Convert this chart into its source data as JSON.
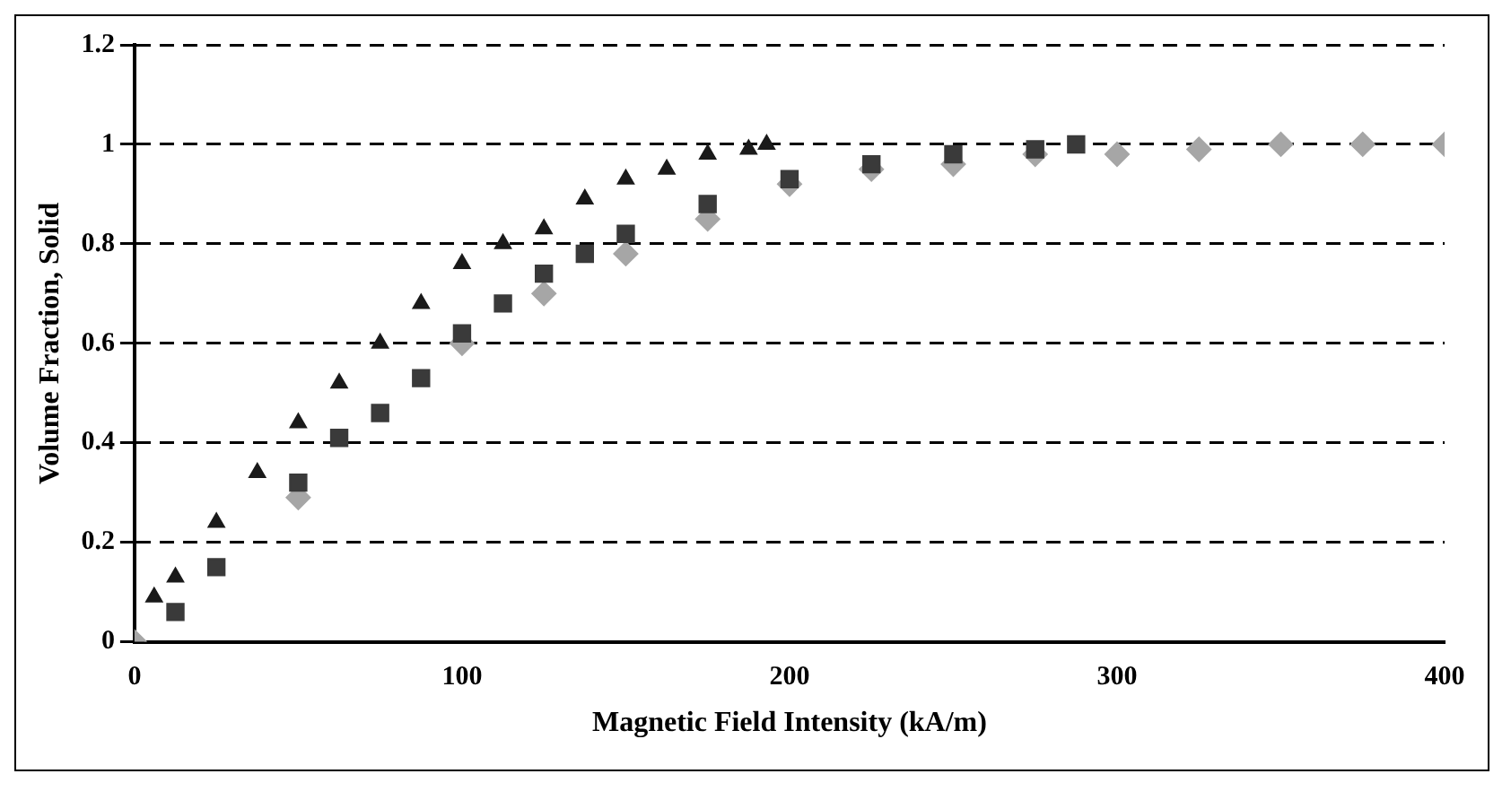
{
  "chart_data": {
    "type": "scatter",
    "xlabel": "Magnetic Field Intensity (kA/m)",
    "ylabel": "Volume Fraction, Solid",
    "xlim": [
      0,
      400
    ],
    "xticks": [
      0,
      100,
      200,
      300,
      400
    ],
    "ylim": [
      0,
      1.2
    ],
    "yticks": [
      0,
      0.2,
      0.4,
      0.6,
      0.8,
      1,
      1.2
    ],
    "grid": "y",
    "legend": false,
    "series": [
      {
        "color": "#a6a6a6",
        "marker": "diamond",
        "x": [
          0,
          50,
          100,
          125,
          150,
          175,
          200,
          225,
          250,
          275,
          300,
          325,
          350,
          375,
          400
        ],
        "values": [
          0,
          0.29,
          0.6,
          0.7,
          0.78,
          0.85,
          0.92,
          0.95,
          0.96,
          0.98,
          0.98,
          0.99,
          1,
          1,
          1
        ]
      },
      {
        "color": "#3a3a3a",
        "marker": "square",
        "x": [
          12.5,
          25,
          50,
          62.5,
          75,
          87.5,
          100,
          112.5,
          125,
          137.5,
          150,
          175,
          200,
          225,
          250,
          275,
          287.5
        ],
        "values": [
          0.06,
          0.15,
          0.32,
          0.41,
          0.46,
          0.53,
          0.62,
          0.68,
          0.74,
          0.78,
          0.82,
          0.88,
          0.93,
          0.96,
          0.98,
          0.99,
          1
        ]
      },
      {
        "color": "#1a1a1a",
        "marker": "triangle",
        "x": [
          6,
          12.5,
          25,
          37.5,
          50,
          62.5,
          75,
          87.5,
          100,
          112.5,
          125,
          137.5,
          150,
          162.5,
          175,
          187.5,
          193
        ],
        "values": [
          0.09,
          0.13,
          0.24,
          0.34,
          0.44,
          0.52,
          0.6,
          0.68,
          0.76,
          0.8,
          0.83,
          0.89,
          0.93,
          0.95,
          0.98,
          0.99,
          1
        ]
      }
    ]
  }
}
